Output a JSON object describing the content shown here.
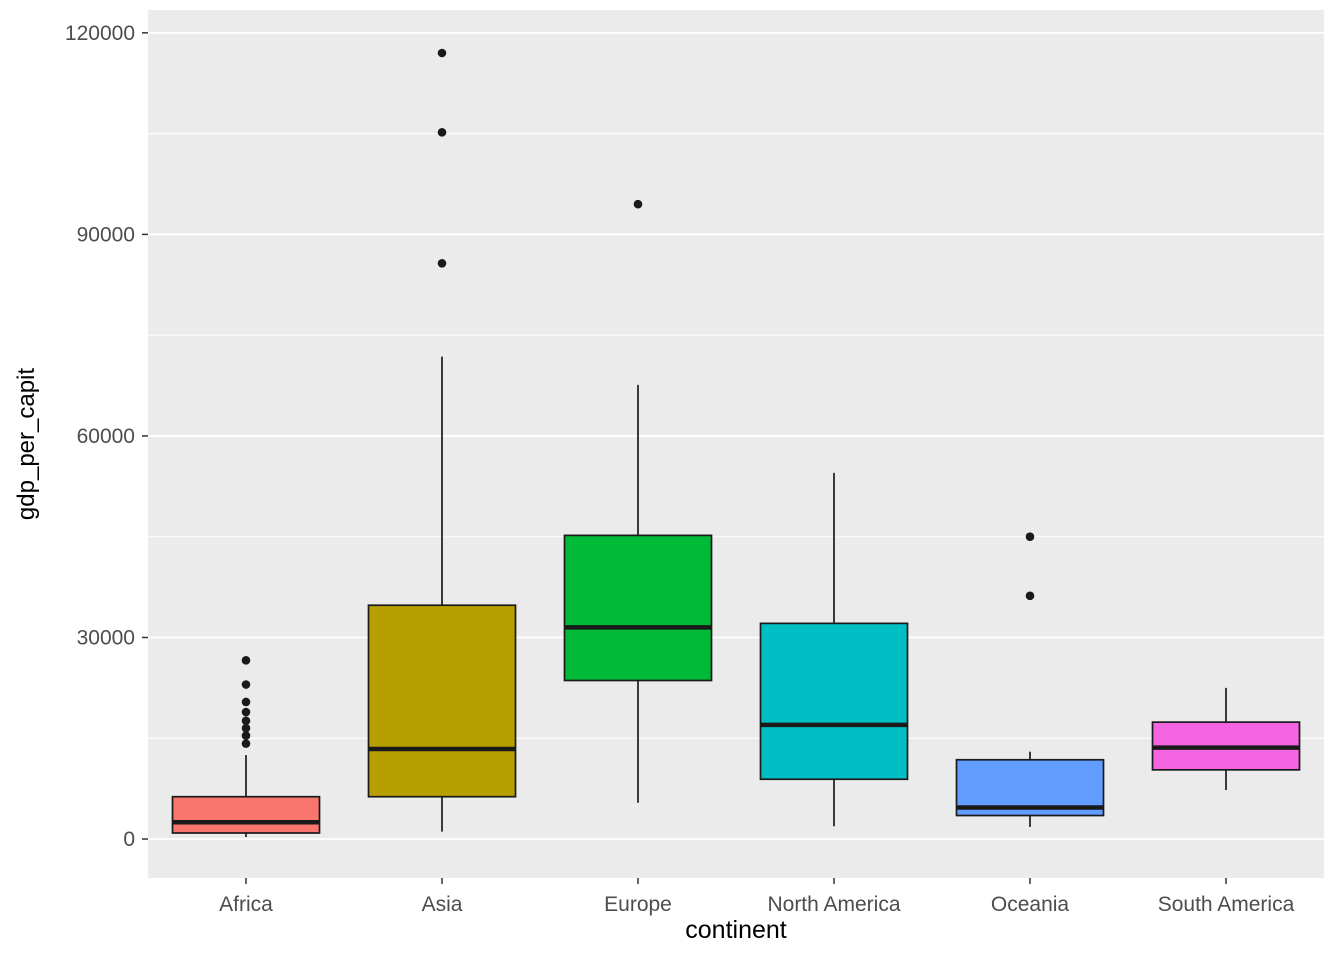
{
  "chart_data": {
    "type": "boxplot",
    "title": "",
    "xlabel": "continent",
    "ylabel": "gdp_per_capit",
    "ylim": [
      -5800,
      123400
    ],
    "yticks": [
      0,
      30000,
      60000,
      90000,
      120000
    ],
    "ytick_labels": [
      "0",
      "30000",
      "60000",
      "90000",
      "120000"
    ],
    "yticks_minor": [
      15000,
      45000,
      75000,
      105000
    ],
    "grid": true,
    "legend_position": "none",
    "panel_background": "#EBEBEB",
    "gridline_color": "#FFFFFF",
    "outline_color": "#1A1A1A",
    "tick_mark_color": "#333333",
    "tick_label_color": "#4D4D4D",
    "categories": [
      "Africa",
      "Asia",
      "Europe",
      "North America",
      "Oceania",
      "South America"
    ],
    "series": [
      {
        "category": "Africa",
        "color": "#F8766D",
        "whisker_low": 300,
        "q1": 900,
        "median": 2500,
        "q3": 6300,
        "whisker_high": 12500,
        "outliers": [
          14200,
          15400,
          16500,
          17600,
          18900,
          20400,
          23000,
          26600
        ]
      },
      {
        "category": "Asia",
        "color": "#B79F00",
        "whisker_low": 1100,
        "q1": 6300,
        "median": 13400,
        "q3": 34800,
        "whisker_high": 71800,
        "outliers": [
          85700,
          105200,
          117000
        ]
      },
      {
        "category": "Europe",
        "color": "#00BA38",
        "whisker_low": 5400,
        "q1": 23600,
        "median": 31500,
        "q3": 45200,
        "whisker_high": 67600,
        "outliers": [
          94500
        ]
      },
      {
        "category": "North America",
        "color": "#00BFC4",
        "whisker_low": 1900,
        "q1": 8900,
        "median": 17000,
        "q3": 32100,
        "whisker_high": 54500,
        "outliers": []
      },
      {
        "category": "Oceania",
        "color": "#619CFF",
        "whisker_low": 1800,
        "q1": 3500,
        "median": 4700,
        "q3": 11800,
        "whisker_high": 13000,
        "outliers": [
          36200,
          45000
        ]
      },
      {
        "category": "South America",
        "color": "#F564E3",
        "whisker_low": 7300,
        "q1": 10300,
        "median": 13600,
        "q3": 17400,
        "whisker_high": 22500,
        "outliers": []
      }
    ]
  }
}
